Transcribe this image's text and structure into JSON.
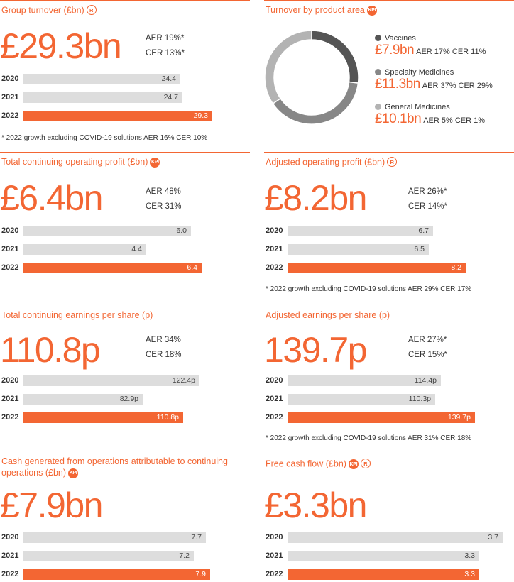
{
  "colors": {
    "accent": "#f36633",
    "bar_grey": "#dddddd",
    "vaccines": "#555555",
    "specialty": "#878787",
    "general": "#b3b3b3"
  },
  "panels": {
    "group_turnover": {
      "title": "Group turnover (£bn)",
      "badge_r": "R",
      "headline": "£29.3bn",
      "growth": [
        "AER 19%*",
        "CER 13%*"
      ],
      "note": "* 2022 growth excluding COVID-19 solutions AER 16% CER 10%"
    },
    "product_area": {
      "title": "Turnover by product area",
      "badge_kpi": "KPI"
    },
    "total_op_profit": {
      "title": "Total continuing operating profit (£bn)",
      "badge_kpi": "KPI",
      "headline": "£6.4bn",
      "growth": [
        "AER 48%",
        "CER 31%"
      ]
    },
    "adj_op_profit": {
      "title": "Adjusted operating profit (£bn)",
      "badge_r": "R",
      "headline": "£8.2bn",
      "growth": [
        "AER 26%*",
        "CER 14%*"
      ],
      "note": "* 2022 growth excluding COVID-19 solutions AER 29% CER 17%"
    },
    "total_eps": {
      "title": "Total continuing earnings per share (p)",
      "headline": "110.8p",
      "growth": [
        "AER 34%",
        "CER 18%"
      ]
    },
    "adj_eps": {
      "title": "Adjusted earnings per share (p)",
      "headline": "139.7p",
      "growth": [
        "AER 27%*",
        "CER 15%*"
      ],
      "note": "* 2022 growth excluding COVID-19 solutions AER 31% CER 18%"
    },
    "cash_ops": {
      "title_line1": "Cash generated from operations attributable to continuing",
      "title_line2": "operations (£bn)",
      "badge_kpi": "KPI",
      "headline": "£7.9bn"
    },
    "fcf": {
      "title": "Free cash flow (£bn)",
      "badge_kpi": "KPI",
      "badge_r": "R",
      "headline": "£3.3bn"
    }
  },
  "chart_data": [
    {
      "id": "group_turnover",
      "type": "bar",
      "orientation": "horizontal",
      "categories": [
        "2020",
        "2021",
        "2022"
      ],
      "values": [
        24.4,
        24.7,
        29.3
      ],
      "labels": [
        "24.4",
        "24.7",
        "29.3"
      ],
      "xlim": [
        0,
        32
      ]
    },
    {
      "id": "product_area",
      "type": "pie",
      "style": "donut",
      "categories": [
        "Vaccines",
        "Specialty Medicines",
        "General Medicines"
      ],
      "values": [
        7.9,
        11.3,
        10.1
      ],
      "value_labels": [
        "£7.9bn",
        "£11.3bn",
        "£10.1bn"
      ],
      "growth": [
        "AER 17% CER 11%",
        "AER 37% CER 29%",
        "AER 5% CER 1%"
      ]
    },
    {
      "id": "total_op_profit",
      "type": "bar",
      "orientation": "horizontal",
      "categories": [
        "2020",
        "2021",
        "2022"
      ],
      "values": [
        6.0,
        4.4,
        6.4
      ],
      "labels": [
        "6.0",
        "4.4",
        "6.4"
      ],
      "xlim": [
        0,
        7
      ]
    },
    {
      "id": "adj_op_profit",
      "type": "bar",
      "orientation": "horizontal",
      "categories": [
        "2020",
        "2021",
        "2022"
      ],
      "values": [
        6.7,
        6.5,
        8.2
      ],
      "labels": [
        "6.7",
        "6.5",
        "8.2"
      ],
      "xlim": [
        0,
        9
      ]
    },
    {
      "id": "total_eps",
      "type": "bar",
      "orientation": "horizontal",
      "categories": [
        "2020",
        "2021",
        "2022"
      ],
      "values": [
        122.4,
        82.9,
        110.8
      ],
      "labels": [
        "122.4p",
        "82.9p",
        "110.8p"
      ],
      "xlim": [
        0,
        140
      ]
    },
    {
      "id": "adj_eps",
      "type": "bar",
      "orientation": "horizontal",
      "categories": [
        "2020",
        "2021",
        "2022"
      ],
      "values": [
        114.4,
        110.3,
        139.7
      ],
      "labels": [
        "114.4p",
        "110.3p",
        "139.7p"
      ],
      "xlim": [
        0,
        152
      ]
    },
    {
      "id": "cash_ops",
      "type": "bar",
      "orientation": "horizontal",
      "categories": [
        "2020",
        "2021",
        "2022"
      ],
      "values": [
        7.7,
        7.2,
        7.9
      ],
      "labels": [
        "7.7",
        "7.2",
        "7.9"
      ],
      "xlim": [
        0,
        8.25
      ]
    },
    {
      "id": "fcf",
      "type": "bar",
      "orientation": "horizontal",
      "categories": [
        "2020",
        "2021",
        "2022"
      ],
      "values": [
        3.7,
        3.3,
        3.3
      ],
      "labels": [
        "3.7",
        "3.3",
        "3.3"
      ],
      "xlim": [
        0,
        3.7
      ]
    }
  ]
}
